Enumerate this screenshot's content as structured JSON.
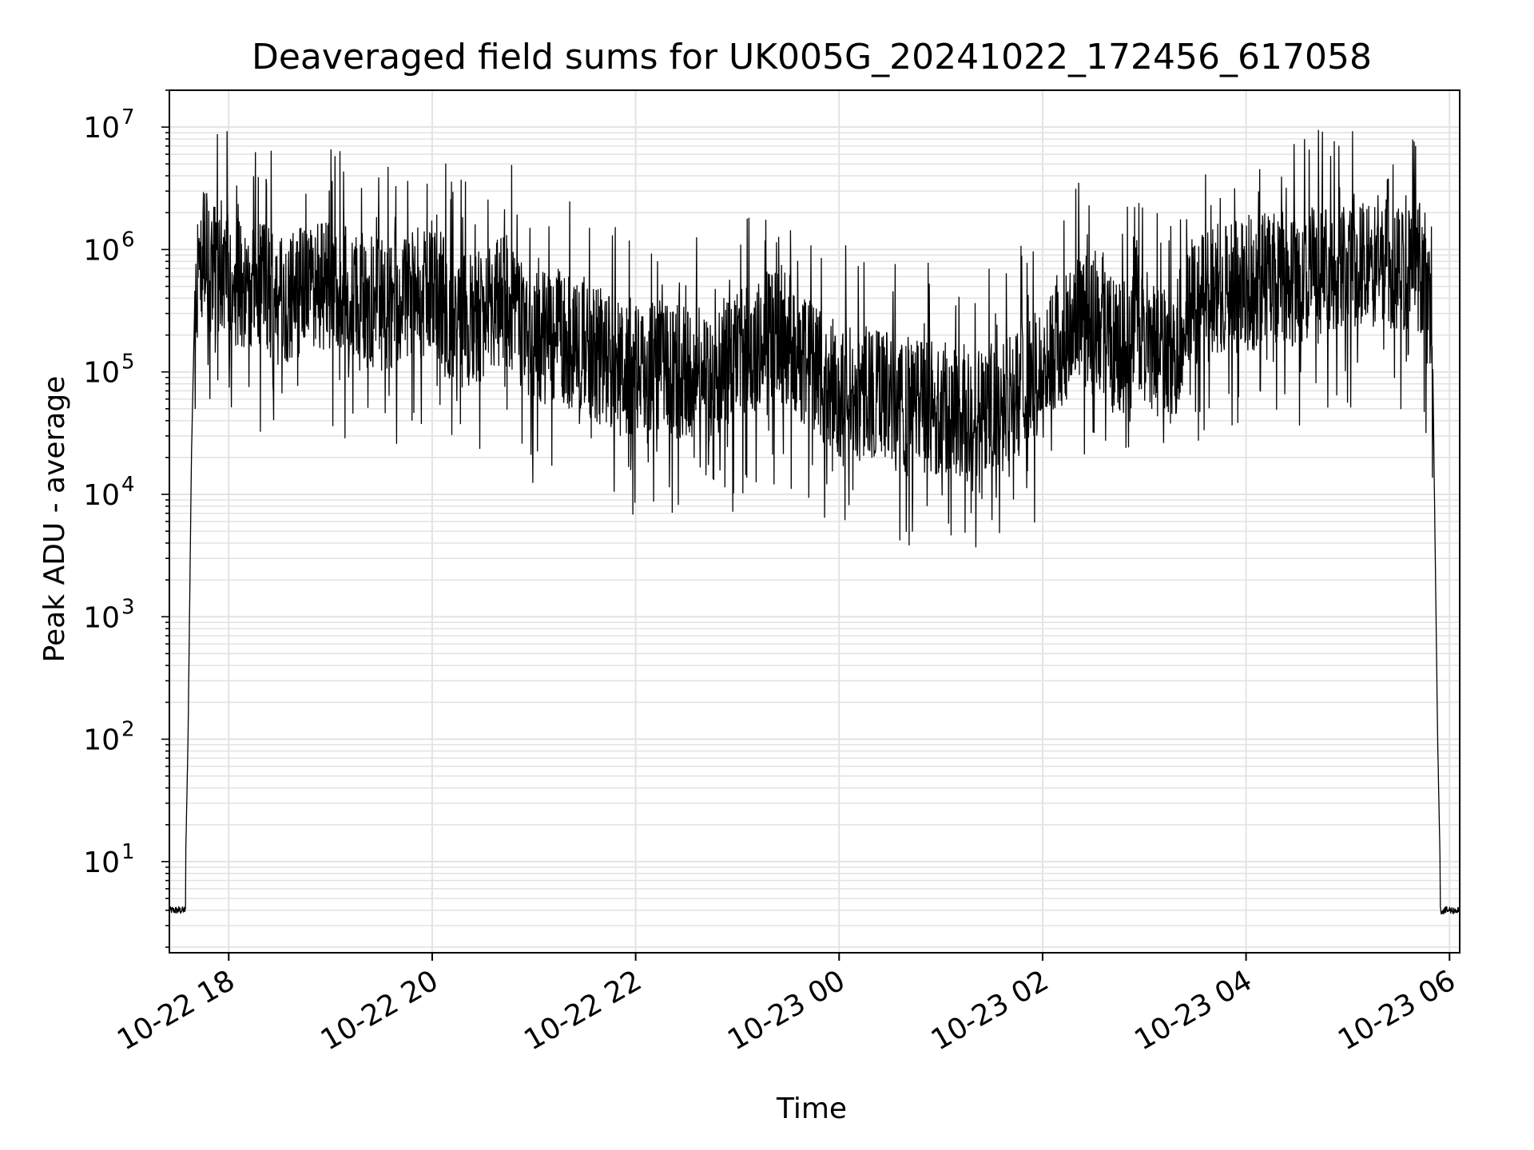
{
  "chart_data": {
    "type": "line",
    "title": "Deaveraged field sums for UK005G_20241022_172456_617058",
    "xlabel": "Time",
    "ylabel": "Peak ADU - average",
    "y_scale": "log",
    "ylim": [
      1.8,
      20000000
    ],
    "xlim": [
      "2024-10-22 17:25",
      "2024-10-23 06:06"
    ],
    "grid": true,
    "line_color": "#000000",
    "grid_color": "#e3e3e3",
    "x_ticks": [
      {
        "t": "2024-10-22 18:00",
        "label": "10-22 18"
      },
      {
        "t": "2024-10-22 20:00",
        "label": "10-22 20"
      },
      {
        "t": "2024-10-22 22:00",
        "label": "10-22 22"
      },
      {
        "t": "2024-10-23 00:00",
        "label": "10-23 00"
      },
      {
        "t": "2024-10-23 02:00",
        "label": "10-23 02"
      },
      {
        "t": "2024-10-23 04:00",
        "label": "10-23 04"
      },
      {
        "t": "2024-10-23 06:00",
        "label": "10-23 06"
      }
    ],
    "y_ticks": [
      {
        "value": 10,
        "base": "10",
        "exp": "1"
      },
      {
        "value": 100,
        "base": "10",
        "exp": "2"
      },
      {
        "value": 1000,
        "base": "10",
        "exp": "3"
      },
      {
        "value": 10000,
        "base": "10",
        "exp": "4"
      },
      {
        "value": 100000,
        "base": "10",
        "exp": "5"
      },
      {
        "value": 1000000,
        "base": "10",
        "exp": "6"
      },
      {
        "value": 10000000,
        "base": "10",
        "exp": "7"
      }
    ],
    "series": [
      {
        "x": [
          "2024-10-22 17:25",
          "2024-10-22 17:30",
          "2024-10-22 17:34",
          "2024-10-22 17:36",
          "2024-10-22 17:38",
          "2024-10-22 17:40",
          "2024-10-22 17:43",
          "2024-10-22 17:46",
          "2024-10-22 17:50",
          "2024-10-22 18:00",
          "2024-10-22 18:15",
          "2024-10-22 18:30",
          "2024-10-22 18:45",
          "2024-10-22 19:00",
          "2024-10-22 19:15",
          "2024-10-22 19:30",
          "2024-10-22 19:45",
          "2024-10-22 20:00",
          "2024-10-22 20:15",
          "2024-10-22 20:30",
          "2024-10-22 20:45",
          "2024-10-22 21:00",
          "2024-10-22 21:15",
          "2024-10-22 21:30",
          "2024-10-22 21:45",
          "2024-10-22 22:00",
          "2024-10-22 22:15",
          "2024-10-22 22:30",
          "2024-10-22 22:45",
          "2024-10-22 23:00",
          "2024-10-22 23:15",
          "2024-10-22 23:30",
          "2024-10-22 23:45",
          "2024-10-23 00:00",
          "2024-10-23 00:15",
          "2024-10-23 00:30",
          "2024-10-23 00:45",
          "2024-10-23 01:00",
          "2024-10-23 01:15",
          "2024-10-23 01:30",
          "2024-10-23 01:45",
          "2024-10-23 02:00",
          "2024-10-23 02:15",
          "2024-10-23 02:30",
          "2024-10-23 02:45",
          "2024-10-23 03:00",
          "2024-10-23 03:15",
          "2024-10-23 03:30",
          "2024-10-23 03:45",
          "2024-10-23 04:00",
          "2024-10-23 04:15",
          "2024-10-23 04:30",
          "2024-10-23 04:45",
          "2024-10-23 05:00",
          "2024-10-23 05:15",
          "2024-10-23 05:30",
          "2024-10-23 05:45",
          "2024-10-23 05:50",
          "2024-10-23 05:53",
          "2024-10-23 05:55",
          "2024-10-23 05:57",
          "2024-10-23 06:06"
        ],
        "y": [
          4,
          4,
          4,
          100,
          20000,
          400000,
          700000,
          900000,
          700000,
          600000,
          500000,
          400000,
          450000,
          500000,
          400000,
          350000,
          380000,
          500000,
          250000,
          300000,
          400000,
          180000,
          200000,
          150000,
          120000,
          100000,
          110000,
          100000,
          90000,
          120000,
          200000,
          180000,
          110000,
          70000,
          65000,
          60000,
          55000,
          50000,
          48000,
          52000,
          70000,
          100000,
          200000,
          300000,
          150000,
          200000,
          120000,
          400000,
          500000,
          500000,
          600000,
          550000,
          700000,
          800000,
          900000,
          750000,
          700000,
          150000,
          100,
          4,
          4,
          4
        ],
        "mean_series_values_only": true
      }
    ]
  }
}
